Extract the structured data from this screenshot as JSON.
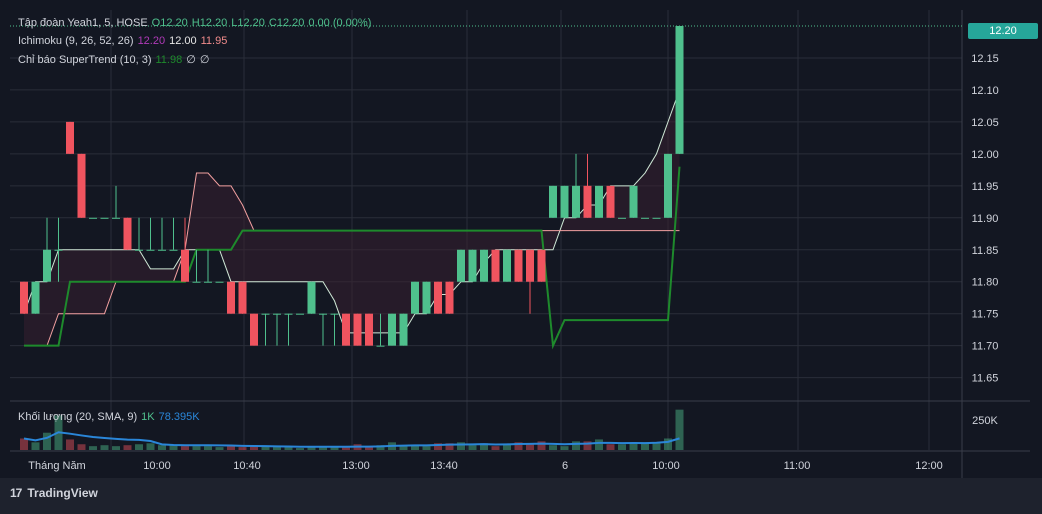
{
  "header": {
    "symbol": "Tập đoàn Yeah1, 5, HOSE",
    "o": "O12.20",
    "h": "H12.20",
    "l": "L12.20",
    "c": "C12.20",
    "chg": "0.00 (0.00%)"
  },
  "ichimoku": {
    "label": "Ichimoku (9, 26, 52, 26)",
    "v1": "12.20",
    "v2": "12.00",
    "v3": "11.95"
  },
  "supertrend": {
    "label": "Chỉ báo SuperTrend (10, 3)",
    "v1": "11.98",
    "v2": "∅",
    "v3": "∅"
  },
  "volume": {
    "label": "Khối lượng (20, SMA, 9)",
    "v1": "1K",
    "v2": "78.395K",
    "axis_label": "250K"
  },
  "last_price": "12.20",
  "footer": {
    "brand": "TradingView"
  },
  "colors": {
    "bg": "#131722",
    "grid": "#2a2e39",
    "up": "#4fc08d",
    "down": "#f0545f",
    "purple": "#b03ab8",
    "darkred": "#8b1a1a",
    "green": "#1e8a2c",
    "text": "#d1d4dc",
    "sma": "#2a86d8"
  },
  "chart_data": {
    "type": "candlestick",
    "price_axis": {
      "ticks": [
        12.15,
        12.1,
        12.05,
        12.0,
        11.95,
        11.9,
        11.85,
        11.8,
        11.75,
        11.7,
        11.65
      ],
      "range": [
        11.615,
        12.225
      ]
    },
    "time_axis": {
      "labels": [
        "Tháng Năm",
        "10:00",
        "10:40",
        "13:00",
        "13:40",
        "6",
        "10:00",
        "11:00",
        "12:00"
      ]
    },
    "candles": [
      {
        "o": 11.8,
        "h": 11.8,
        "l": 11.75,
        "c": 11.75
      },
      {
        "o": 11.75,
        "h": 11.8,
        "l": 11.75,
        "c": 11.8
      },
      {
        "o": 11.8,
        "h": 11.9,
        "l": 11.8,
        "c": 11.85
      },
      {
        "o": 11.85,
        "h": 11.9,
        "l": 11.8,
        "c": 11.85
      },
      {
        "o": 12.05,
        "h": 12.05,
        "l": 12.0,
        "c": 12.0
      },
      {
        "o": 12.0,
        "h": 12.0,
        "l": 11.9,
        "c": 11.9
      },
      {
        "o": 11.9,
        "h": 11.9,
        "l": 11.9,
        "c": 11.9
      },
      {
        "o": 11.9,
        "h": 11.9,
        "l": 11.9,
        "c": 11.9
      },
      {
        "o": 11.9,
        "h": 11.95,
        "l": 11.9,
        "c": 11.9
      },
      {
        "o": 11.9,
        "h": 11.9,
        "l": 11.85,
        "c": 11.85
      },
      {
        "o": 11.85,
        "h": 11.9,
        "l": 11.85,
        "c": 11.85
      },
      {
        "o": 11.85,
        "h": 11.9,
        "l": 11.85,
        "c": 11.85
      },
      {
        "o": 11.85,
        "h": 11.9,
        "l": 11.85,
        "c": 11.85
      },
      {
        "o": 11.85,
        "h": 11.9,
        "l": 11.85,
        "c": 11.85
      },
      {
        "o": 11.85,
        "h": 11.9,
        "l": 11.8,
        "c": 11.8
      },
      {
        "o": 11.8,
        "h": 11.85,
        "l": 11.8,
        "c": 11.8
      },
      {
        "o": 11.8,
        "h": 11.85,
        "l": 11.8,
        "c": 11.8
      },
      {
        "o": 11.8,
        "h": 11.8,
        "l": 11.8,
        "c": 11.8
      },
      {
        "o": 11.8,
        "h": 11.8,
        "l": 11.75,
        "c": 11.75
      },
      {
        "o": 11.8,
        "h": 11.8,
        "l": 11.75,
        "c": 11.75
      },
      {
        "o": 11.75,
        "h": 11.75,
        "l": 11.7,
        "c": 11.7
      },
      {
        "o": 11.75,
        "h": 11.75,
        "l": 11.7,
        "c": 11.75
      },
      {
        "o": 11.75,
        "h": 11.75,
        "l": 11.7,
        "c": 11.75
      },
      {
        "o": 11.75,
        "h": 11.75,
        "l": 11.7,
        "c": 11.75
      },
      {
        "o": 11.75,
        "h": 11.75,
        "l": 11.75,
        "c": 11.75
      },
      {
        "o": 11.75,
        "h": 11.8,
        "l": 11.75,
        "c": 11.8
      },
      {
        "o": 11.75,
        "h": 11.75,
        "l": 11.7,
        "c": 11.75
      },
      {
        "o": 11.75,
        "h": 11.75,
        "l": 11.7,
        "c": 11.75
      },
      {
        "o": 11.75,
        "h": 11.75,
        "l": 11.7,
        "c": 11.7
      },
      {
        "o": 11.75,
        "h": 11.75,
        "l": 11.7,
        "c": 11.7
      },
      {
        "o": 11.75,
        "h": 11.75,
        "l": 11.7,
        "c": 11.7
      },
      {
        "o": 11.7,
        "h": 11.75,
        "l": 11.7,
        "c": 11.7
      },
      {
        "o": 11.7,
        "h": 11.75,
        "l": 11.7,
        "c": 11.75
      },
      {
        "o": 11.7,
        "h": 11.75,
        "l": 11.7,
        "c": 11.75
      },
      {
        "o": 11.75,
        "h": 11.8,
        "l": 11.75,
        "c": 11.8
      },
      {
        "o": 11.75,
        "h": 11.8,
        "l": 11.75,
        "c": 11.8
      },
      {
        "o": 11.8,
        "h": 11.8,
        "l": 11.75,
        "c": 11.75
      },
      {
        "o": 11.8,
        "h": 11.8,
        "l": 11.75,
        "c": 11.75
      },
      {
        "o": 11.8,
        "h": 11.85,
        "l": 11.8,
        "c": 11.85
      },
      {
        "o": 11.8,
        "h": 11.85,
        "l": 11.8,
        "c": 11.85
      },
      {
        "o": 11.8,
        "h": 11.85,
        "l": 11.8,
        "c": 11.85
      },
      {
        "o": 11.85,
        "h": 11.85,
        "l": 11.8,
        "c": 11.8
      },
      {
        "o": 11.8,
        "h": 11.85,
        "l": 11.8,
        "c": 11.85
      },
      {
        "o": 11.85,
        "h": 11.85,
        "l": 11.8,
        "c": 11.8
      },
      {
        "o": 11.85,
        "h": 11.85,
        "l": 11.75,
        "c": 11.8
      },
      {
        "o": 11.85,
        "h": 11.85,
        "l": 11.8,
        "c": 11.8
      },
      {
        "o": 11.9,
        "h": 11.95,
        "l": 11.9,
        "c": 11.95
      },
      {
        "o": 11.9,
        "h": 11.95,
        "l": 11.9,
        "c": 11.95
      },
      {
        "o": 11.9,
        "h": 12.0,
        "l": 11.9,
        "c": 11.95
      },
      {
        "o": 11.95,
        "h": 12.0,
        "l": 11.9,
        "c": 11.9
      },
      {
        "o": 11.9,
        "h": 11.95,
        "l": 11.9,
        "c": 11.95
      },
      {
        "o": 11.95,
        "h": 11.95,
        "l": 11.9,
        "c": 11.9
      },
      {
        "o": 11.9,
        "h": 11.9,
        "l": 11.9,
        "c": 11.9
      },
      {
        "o": 11.9,
        "h": 11.95,
        "l": 11.9,
        "c": 11.95
      },
      {
        "o": 11.9,
        "h": 11.9,
        "l": 11.9,
        "c": 11.9
      },
      {
        "o": 11.9,
        "h": 11.9,
        "l": 11.9,
        "c": 11.9
      },
      {
        "o": 11.9,
        "h": 12.0,
        "l": 11.9,
        "c": 12.0
      },
      {
        "o": 12.0,
        "h": 12.2,
        "l": 12.0,
        "c": 12.2
      }
    ],
    "volume": [
      60,
      40,
      90,
      180,
      55,
      30,
      20,
      25,
      20,
      25,
      30,
      35,
      25,
      25,
      20,
      20,
      20,
      15,
      20,
      15,
      25,
      20,
      15,
      15,
      10,
      15,
      20,
      15,
      20,
      30,
      20,
      25,
      40,
      20,
      25,
      20,
      35,
      35,
      40,
      25,
      35,
      20,
      30,
      40,
      30,
      45,
      25,
      20,
      45,
      45,
      55,
      30,
      30,
      35,
      40,
      40,
      60,
      210
    ],
    "ichimoku": {
      "conversion": [
        11.75,
        11.8,
        11.8,
        11.85,
        11.85,
        11.85,
        11.85,
        11.85,
        11.85,
        11.85,
        11.85,
        11.82,
        11.82,
        11.82,
        11.85,
        11.85,
        11.85,
        11.85,
        11.8,
        11.8,
        11.8,
        11.8,
        11.8,
        11.8,
        11.8,
        11.8,
        11.8,
        11.77,
        11.72,
        11.72,
        11.72,
        11.72,
        11.72,
        11.72,
        11.75,
        11.75,
        11.78,
        11.78,
        11.8,
        11.8,
        11.83,
        11.85,
        11.85,
        11.85,
        11.85,
        11.85,
        11.85,
        11.9,
        11.9,
        11.92,
        11.92,
        11.95,
        11.95,
        11.95,
        11.97,
        12.0,
        12.05,
        12.1
      ],
      "base": [
        11.7,
        11.7,
        11.7,
        11.75,
        11.75,
        11.75,
        11.75,
        11.75,
        11.8,
        11.8,
        11.8,
        11.8,
        11.8,
        11.8,
        11.85,
        11.97,
        11.97,
        11.95,
        11.95,
        11.92,
        11.88,
        11.88,
        11.88,
        11.88,
        11.88,
        11.88,
        11.88,
        11.88,
        11.88,
        11.88,
        11.88,
        11.88,
        11.88,
        11.88,
        11.88,
        11.88,
        11.88,
        11.88,
        11.88,
        11.88,
        11.88,
        11.88,
        11.88,
        11.88,
        11.88,
        11.88,
        11.88,
        11.88,
        11.88,
        11.88,
        11.88,
        11.88,
        11.88,
        11.88,
        11.88,
        11.88,
        11.88,
        11.88
      ]
    },
    "supertrend": [
      11.7,
      11.7,
      11.7,
      11.7,
      11.8,
      11.8,
      11.8,
      11.8,
      11.8,
      11.8,
      11.8,
      11.8,
      11.8,
      11.8,
      11.8,
      11.85,
      11.85,
      11.85,
      11.85,
      11.88,
      11.88,
      11.88,
      11.88,
      11.88,
      11.88,
      11.88,
      11.88,
      11.88,
      11.88,
      11.88,
      11.88,
      11.88,
      11.88,
      11.88,
      11.88,
      11.88,
      11.88,
      11.88,
      11.88,
      11.88,
      11.88,
      11.88,
      11.88,
      11.88,
      11.88,
      11.88,
      11.7,
      11.74,
      11.74,
      11.74,
      11.74,
      11.74,
      11.74,
      11.74,
      11.74,
      11.74,
      11.74,
      11.98
    ]
  }
}
